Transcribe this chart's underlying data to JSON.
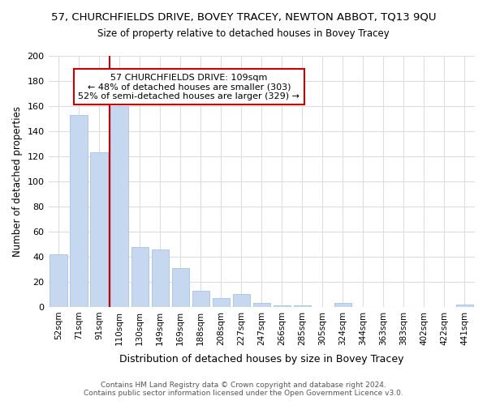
{
  "title": "57, CHURCHFIELDS DRIVE, BOVEY TRACEY, NEWTON ABBOT, TQ13 9QU",
  "subtitle": "Size of property relative to detached houses in Bovey Tracey",
  "xlabel": "Distribution of detached houses by size in Bovey Tracey",
  "ylabel": "Number of detached properties",
  "categories": [
    "52sqm",
    "71sqm",
    "91sqm",
    "110sqm",
    "130sqm",
    "149sqm",
    "169sqm",
    "188sqm",
    "208sqm",
    "227sqm",
    "247sqm",
    "266sqm",
    "285sqm",
    "305sqm",
    "324sqm",
    "344sqm",
    "363sqm",
    "383sqm",
    "402sqm",
    "422sqm",
    "441sqm"
  ],
  "values": [
    42,
    153,
    123,
    160,
    48,
    46,
    31,
    13,
    7,
    10,
    3,
    1,
    1,
    0,
    3,
    0,
    0,
    0,
    0,
    0,
    2
  ],
  "bar_color": "#c5d8f0",
  "bar_edge_color": "#aec6e8",
  "vline_x": 2.5,
  "vline_color": "#cc0000",
  "annotation_title": "57 CHURCHFIELDS DRIVE: 109sqm",
  "annotation_line1": "← 48% of detached houses are smaller (303)",
  "annotation_line2": "52% of semi-detached houses are larger (329) →",
  "annotation_box_color": "#ffffff",
  "annotation_box_edge": "#cc0000",
  "ylim": [
    0,
    200
  ],
  "yticks": [
    0,
    20,
    40,
    60,
    80,
    100,
    120,
    140,
    160,
    180,
    200
  ],
  "footer_line1": "Contains HM Land Registry data © Crown copyright and database right 2024.",
  "footer_line2": "Contains public sector information licensed under the Open Government Licence v3.0.",
  "background_color": "#ffffff",
  "grid_color": "#dddddd"
}
